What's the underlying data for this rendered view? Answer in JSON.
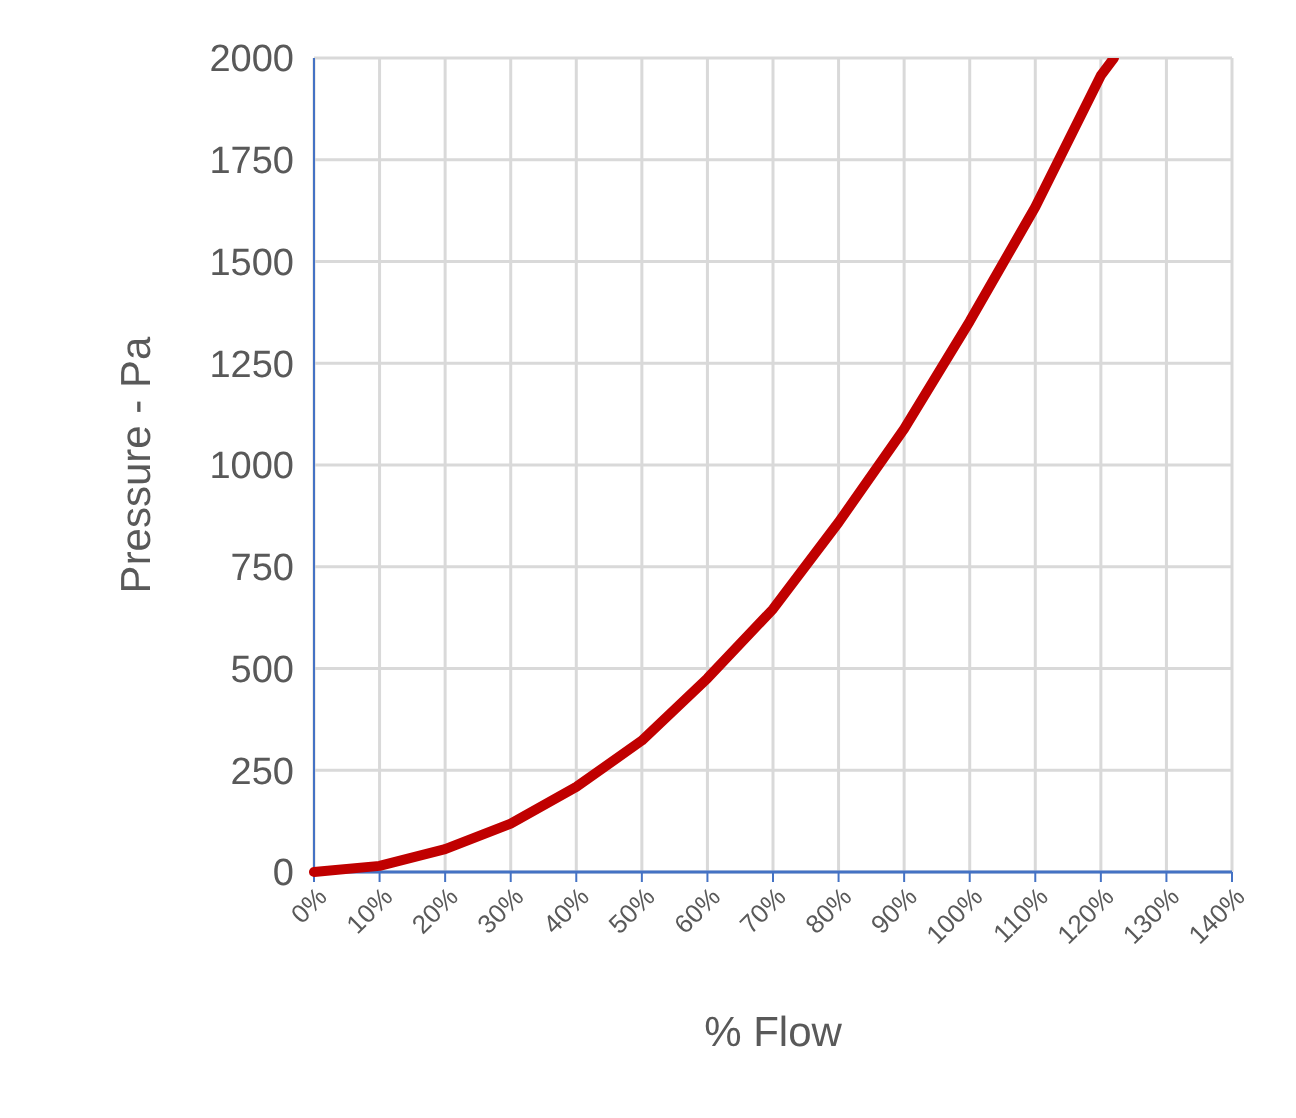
{
  "chart_data": {
    "type": "line",
    "xlabel": "% Flow",
    "ylabel": "Pressure - Pa",
    "x": [
      0,
      10,
      20,
      30,
      40,
      50,
      60,
      70,
      80,
      90,
      100,
      110,
      120,
      122
    ],
    "series": [
      {
        "color": "#c00000",
        "values": [
          0,
          15,
          56,
          119,
          209,
          323,
          476,
          646,
          859,
          1089,
          1353,
          1634,
          1957,
          2000
        ]
      }
    ],
    "xlim": [
      0,
      140
    ],
    "xticks": [
      {
        "value": 0,
        "label": "0%"
      },
      {
        "value": 10,
        "label": "10%"
      },
      {
        "value": 20,
        "label": "20%"
      },
      {
        "value": 30,
        "label": "30%"
      },
      {
        "value": 40,
        "label": "40%"
      },
      {
        "value": 50,
        "label": "50%"
      },
      {
        "value": 60,
        "label": "60%"
      },
      {
        "value": 70,
        "label": "70%"
      },
      {
        "value": 80,
        "label": "80%"
      },
      {
        "value": 90,
        "label": "90%"
      },
      {
        "value": 100,
        "label": "100%"
      },
      {
        "value": 110,
        "label": "110%"
      },
      {
        "value": 120,
        "label": "120%"
      },
      {
        "value": 130,
        "label": "130%"
      },
      {
        "value": 140,
        "label": "140%"
      }
    ],
    "ylim": [
      0,
      2000
    ],
    "yticks": [
      0,
      250,
      500,
      750,
      1000,
      1250,
      1500,
      1750,
      2000
    ],
    "grid": true,
    "marker": "none",
    "line_style": "solid"
  }
}
